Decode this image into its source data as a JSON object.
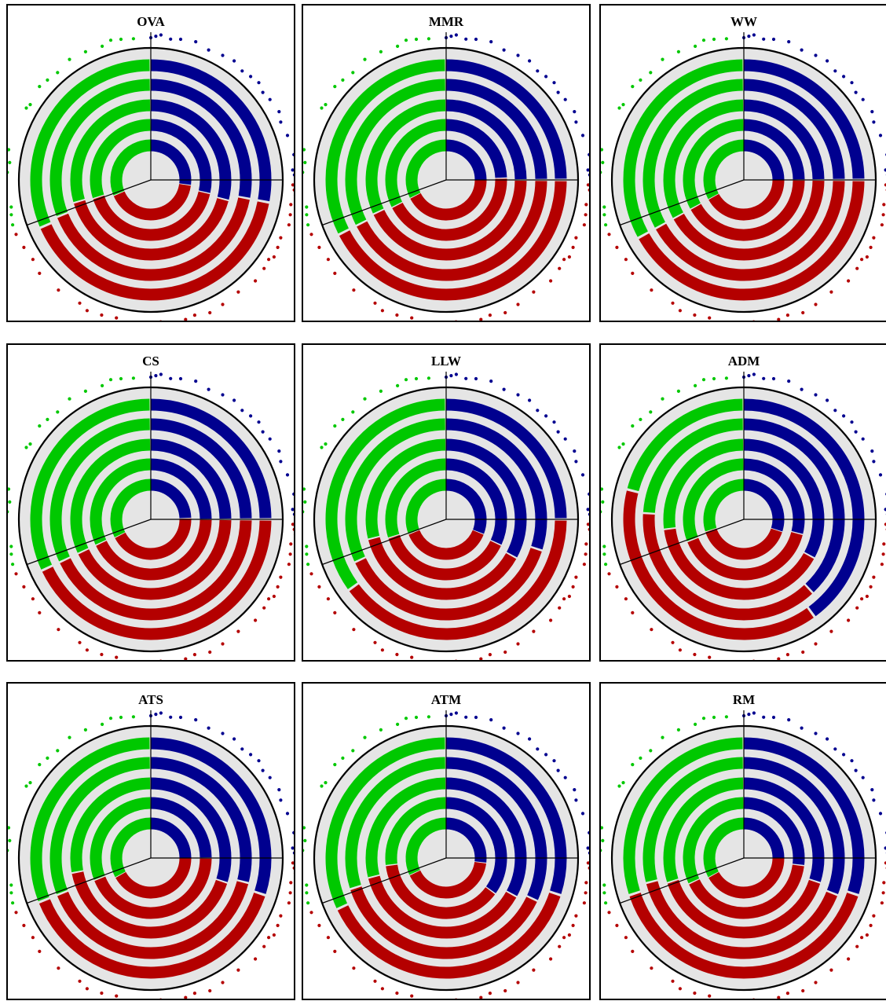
{
  "colors": {
    "class1": "#00008f",
    "class2": "#00c800",
    "class3": "#b40000",
    "disc": "#e5e5e5",
    "axis": "#000000"
  },
  "chart_data": [
    {
      "type": "radial-bar",
      "title": "OVA",
      "ring_shares": [
        [
          0.271,
          0.314,
          0.415
        ],
        [
          0.286,
          0.3,
          0.414
        ],
        [
          0.291,
          0.296,
          0.413
        ],
        [
          0.28,
          0.31,
          0.41
        ],
        [
          0.28,
          0.315,
          0.405
        ]
      ]
    },
    {
      "type": "radial-bar",
      "title": "MMR",
      "ring_shares": [
        [
          0.25,
          0.325,
          0.425
        ],
        [
          0.245,
          0.325,
          0.43
        ],
        [
          0.25,
          0.32,
          0.43
        ],
        [
          0.25,
          0.325,
          0.425
        ],
        [
          0.25,
          0.325,
          0.425
        ]
      ]
    },
    {
      "type": "radial-bar",
      "title": "WW",
      "ring_shares": [
        [
          0.25,
          0.33,
          0.42
        ],
        [
          0.25,
          0.33,
          0.42
        ],
        [
          0.25,
          0.33,
          0.42
        ],
        [
          0.25,
          0.33,
          0.42
        ],
        [
          0.25,
          0.33,
          0.42
        ]
      ]
    },
    {
      "type": "radial-bar",
      "title": "CS",
      "ring_shares": [
        [
          0.245,
          0.325,
          0.43
        ],
        [
          0.25,
          0.32,
          0.43
        ],
        [
          0.25,
          0.32,
          0.43
        ],
        [
          0.25,
          0.32,
          0.43
        ],
        [
          0.25,
          0.32,
          0.43
        ]
      ]
    },
    {
      "type": "radial-bar",
      "title": "LLW",
      "ring_shares": [
        [
          0.31,
          0.31,
          0.38
        ],
        [
          0.32,
          0.3,
          0.38
        ],
        [
          0.33,
          0.29,
          0.38
        ],
        [
          0.3,
          0.32,
          0.38
        ],
        [
          0.25,
          0.35,
          0.4
        ]
      ]
    },
    {
      "type": "radial-bar",
      "title": "ADM",
      "ring_shares": [
        [
          0.3,
          0.3,
          0.4
        ],
        [
          0.29,
          0.31,
          0.4
        ],
        [
          0.33,
          0.27,
          0.4
        ],
        [
          0.38,
          0.24,
          0.38
        ],
        [
          0.4,
          0.21,
          0.39
        ]
      ]
    },
    {
      "type": "radial-bar",
      "title": "ATS",
      "ring_shares": [
        [
          0.25,
          0.33,
          0.42
        ],
        [
          0.25,
          0.31,
          0.44
        ],
        [
          0.3,
          0.28,
          0.42
        ],
        [
          0.29,
          0.31,
          0.4
        ],
        [
          0.3,
          0.31,
          0.39
        ]
      ]
    },
    {
      "type": "radial-bar",
      "title": "ATM",
      "ring_shares": [
        [
          0.27,
          0.32,
          0.41
        ],
        [
          0.35,
          0.27,
          0.38
        ],
        [
          0.33,
          0.29,
          0.38
        ],
        [
          0.32,
          0.3,
          0.38
        ],
        [
          0.3,
          0.32,
          0.38
        ]
      ]
    },
    {
      "type": "radial-bar",
      "title": "RM",
      "ring_shares": [
        [
          0.25,
          0.33,
          0.42
        ],
        [
          0.27,
          0.32,
          0.41
        ],
        [
          0.3,
          0.3,
          0.4
        ],
        [
          0.31,
          0.29,
          0.4
        ],
        [
          0.3,
          0.3,
          0.4
        ]
      ]
    }
  ],
  "outer_dots": {
    "class1_angles_deg": [
      90,
      88,
      86,
      82,
      78,
      72,
      66,
      60,
      55,
      50,
      46,
      42,
      38,
      34,
      28,
      24,
      18,
      10,
      4,
      2
    ],
    "class2_angles_deg": [
      97,
      102,
      106,
      110,
      117,
      124,
      131,
      136,
      140,
      148,
      150,
      168,
      173,
      177,
      180,
      191,
      194,
      198
    ],
    "class3_angles_deg": [
      -2,
      -4,
      -6,
      -10,
      -14,
      -18,
      -24,
      -28,
      -32,
      -34,
      -38,
      -44,
      -52,
      -60,
      -66,
      -72,
      -76,
      -80,
      -86,
      -92,
      -98,
      -104,
      -110,
      -116,
      -120,
      -130,
      -140,
      -146,
      -152,
      -158
    ]
  }
}
